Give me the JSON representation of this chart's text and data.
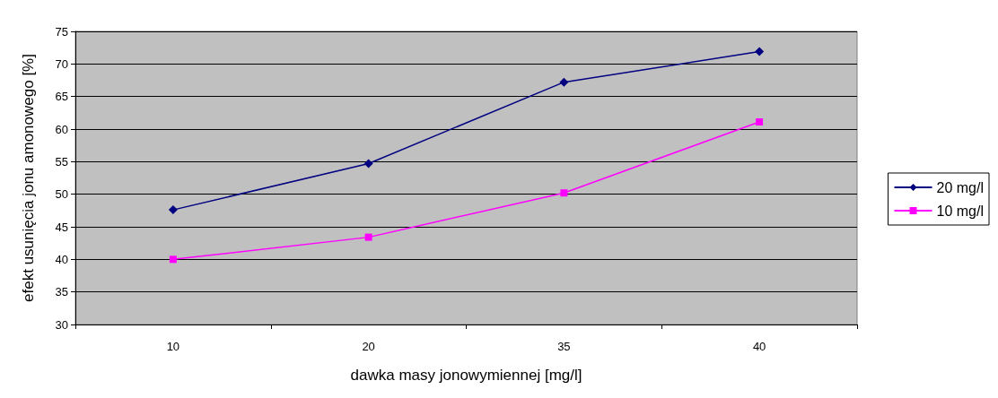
{
  "chart_data": {
    "type": "line",
    "xlabel": "dawka masy jonowymiennej [mg/l]",
    "ylabel": "efekt usunięcia jonu amonowego [%]",
    "categories": [
      "10",
      "20",
      "35",
      "40"
    ],
    "series": [
      {
        "name": "20 mg/l",
        "color": "#000080",
        "marker": "diamond",
        "values": [
          47.6,
          54.7,
          67.2,
          71.9
        ]
      },
      {
        "name": "10 mg/l",
        "color": "#ff00ff",
        "marker": "square",
        "values": [
          40.0,
          43.4,
          50.2,
          61.1
        ]
      }
    ],
    "ylim": [
      30,
      75
    ],
    "yticks": [
      30,
      35,
      40,
      45,
      50,
      55,
      60,
      65,
      70,
      75
    ],
    "grid": "y",
    "legend": "right"
  }
}
